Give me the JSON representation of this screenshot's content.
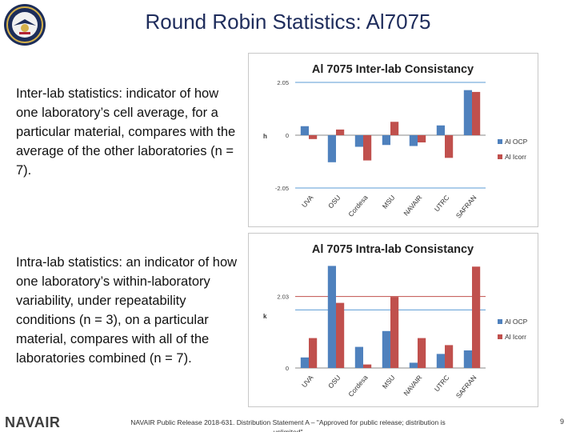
{
  "slide": {
    "title": "Round Robin Statistics: Al7075",
    "para1": "Inter-lab statistics: indicator of how one laboratory’s cell average, for a particular material, compares with the average of the other laboratories (n = 7).",
    "para2": "Intra-lab statistics: an indicator of how one laboratory’s within-laboratory variability, under repeatability conditions (n = 3), on a particular material, compares with all of the laboratories combined (n = 7).",
    "brand": "NAVAIR",
    "footer": "NAVAIR Public Release 2018-631. Distribution Statement A – \"Approved for public release; distribution is unlimited\"",
    "page_number": "9"
  },
  "colors": {
    "ocp": "#4f81bd",
    "icorr": "#c0504d",
    "title": "#1f2d5c",
    "refline": "#5b9bd5"
  },
  "chart_data": [
    {
      "type": "bar",
      "title": "Al 7075 Inter-lab Consistancy",
      "ylabel": "h",
      "categories": [
        "UVA",
        "OSU",
        "Cordesa",
        "MSU",
        "NAVAIR",
        "UTRC",
        "SAFRAN"
      ],
      "series": [
        {
          "name": "Al OCP",
          "values": [
            0.35,
            -1.05,
            -0.45,
            -0.38,
            -0.42,
            0.38,
            1.75
          ]
        },
        {
          "name": "Al Icorr",
          "values": [
            -0.15,
            0.22,
            -0.98,
            0.52,
            -0.28,
            -0.88,
            1.68
          ]
        }
      ],
      "yticks": [
        "2.05",
        "0",
        "-2.05"
      ],
      "ylim": [
        -2.05,
        2.05
      ],
      "reference_lines": [
        2.05,
        -2.05
      ]
    },
    {
      "type": "bar",
      "title": "Al 7075 Intra-lab Consistancy",
      "ylabel": "k",
      "categories": [
        "UVA",
        "OSU",
        "Cordesa",
        "MSU",
        "NAVAIR",
        "UTRC",
        "SAFRAN"
      ],
      "series": [
        {
          "name": "Al OCP",
          "values": [
            0.3,
            2.9,
            0.6,
            1.05,
            0.15,
            0.4,
            0.5
          ]
        },
        {
          "name": "Al Icorr",
          "values": [
            0.85,
            1.85,
            0.1,
            2.02,
            0.85,
            0.65,
            2.88
          ]
        }
      ],
      "yticks": [
        "2.03",
        "0"
      ],
      "ylim": [
        0,
        3.0
      ],
      "reference_lines": [
        2.03,
        1.65
      ]
    }
  ]
}
